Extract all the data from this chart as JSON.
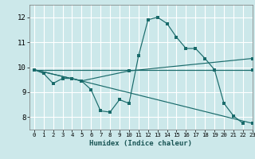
{
  "title": "",
  "xlabel": "Humidex (Indice chaleur)",
  "bg_color": "#cce8ea",
  "grid_color": "#ffffff",
  "line_color": "#1a6b6b",
  "xlim": [
    -0.5,
    23
  ],
  "ylim": [
    7.5,
    12.5
  ],
  "yticks": [
    8,
    9,
    10,
    11,
    12
  ],
  "xticks": [
    0,
    1,
    2,
    3,
    4,
    5,
    6,
    7,
    8,
    9,
    10,
    11,
    12,
    13,
    14,
    15,
    16,
    17,
    18,
    19,
    20,
    21,
    22,
    23
  ],
  "series1_x": [
    0,
    1,
    2,
    3,
    4,
    5,
    6,
    7,
    8,
    9,
    10,
    11,
    12,
    13,
    14,
    15,
    16,
    17,
    18,
    19,
    20,
    21,
    22
  ],
  "series1_y": [
    9.9,
    9.75,
    9.35,
    9.55,
    9.55,
    9.45,
    9.1,
    8.25,
    8.2,
    8.7,
    8.55,
    10.45,
    11.9,
    12.0,
    11.75,
    11.2,
    10.75,
    10.75,
    10.35,
    9.9,
    8.55,
    8.05,
    7.75
  ],
  "series2_x": [
    0,
    5,
    23
  ],
  "series2_y": [
    9.9,
    9.45,
    7.75
  ],
  "series3_x": [
    0,
    23
  ],
  "series3_y": [
    9.9,
    9.9
  ],
  "series4_x": [
    0,
    5,
    10,
    23
  ],
  "series4_y": [
    9.9,
    9.45,
    9.85,
    10.35
  ]
}
